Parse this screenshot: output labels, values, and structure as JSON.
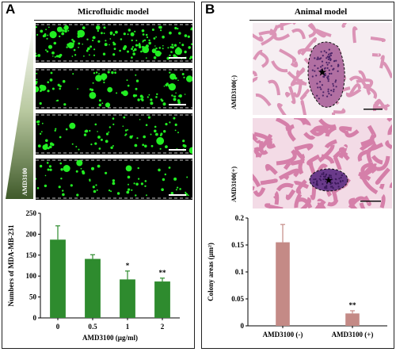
{
  "panelA": {
    "letter": "A",
    "title": "Microfluidic model",
    "wedge_label": "AMD3100"
  },
  "panelB": {
    "letter": "B",
    "title": "Animal model",
    "row_labels": [
      "AMD3100(-)",
      "AMD3100(+)"
    ]
  },
  "colors": {
    "bar_green": "#2e8b2e",
    "bar_pink": "#c48a86",
    "fluor_green": "#22ee22",
    "tissue_pink": "#e8a3c0",
    "nuclei_purple": "#5a2a7a"
  },
  "chart_data": [
    {
      "type": "bar",
      "categories": [
        "0",
        "0.5",
        "1",
        "2"
      ],
      "values": [
        187,
        141,
        92,
        87
      ],
      "errors": [
        33,
        10,
        20,
        8
      ],
      "annotations": [
        "",
        "",
        "*",
        "**"
      ],
      "xlabel": "AMD3100 (µg/ml)",
      "ylabel": "Numbers of MDA-MB-231",
      "ylim": [
        0,
        250
      ],
      "yticks": [
        "0",
        "50",
        "100",
        "150",
        "200",
        "250"
      ],
      "grid": false
    },
    {
      "type": "bar",
      "categories": [
        "AMD3100 (-)",
        "AMD3100 (+)"
      ],
      "values": [
        0.155,
        0.023
      ],
      "errors": [
        0.033,
        0.005
      ],
      "annotations": [
        "",
        "**"
      ],
      "xlabel": "",
      "ylabel": "Colony areas (µm²)",
      "ylim": [
        0,
        0.2
      ],
      "yticks": [
        "0",
        "0.05",
        "0.1",
        "0.15",
        "0.2"
      ],
      "grid": false
    }
  ]
}
